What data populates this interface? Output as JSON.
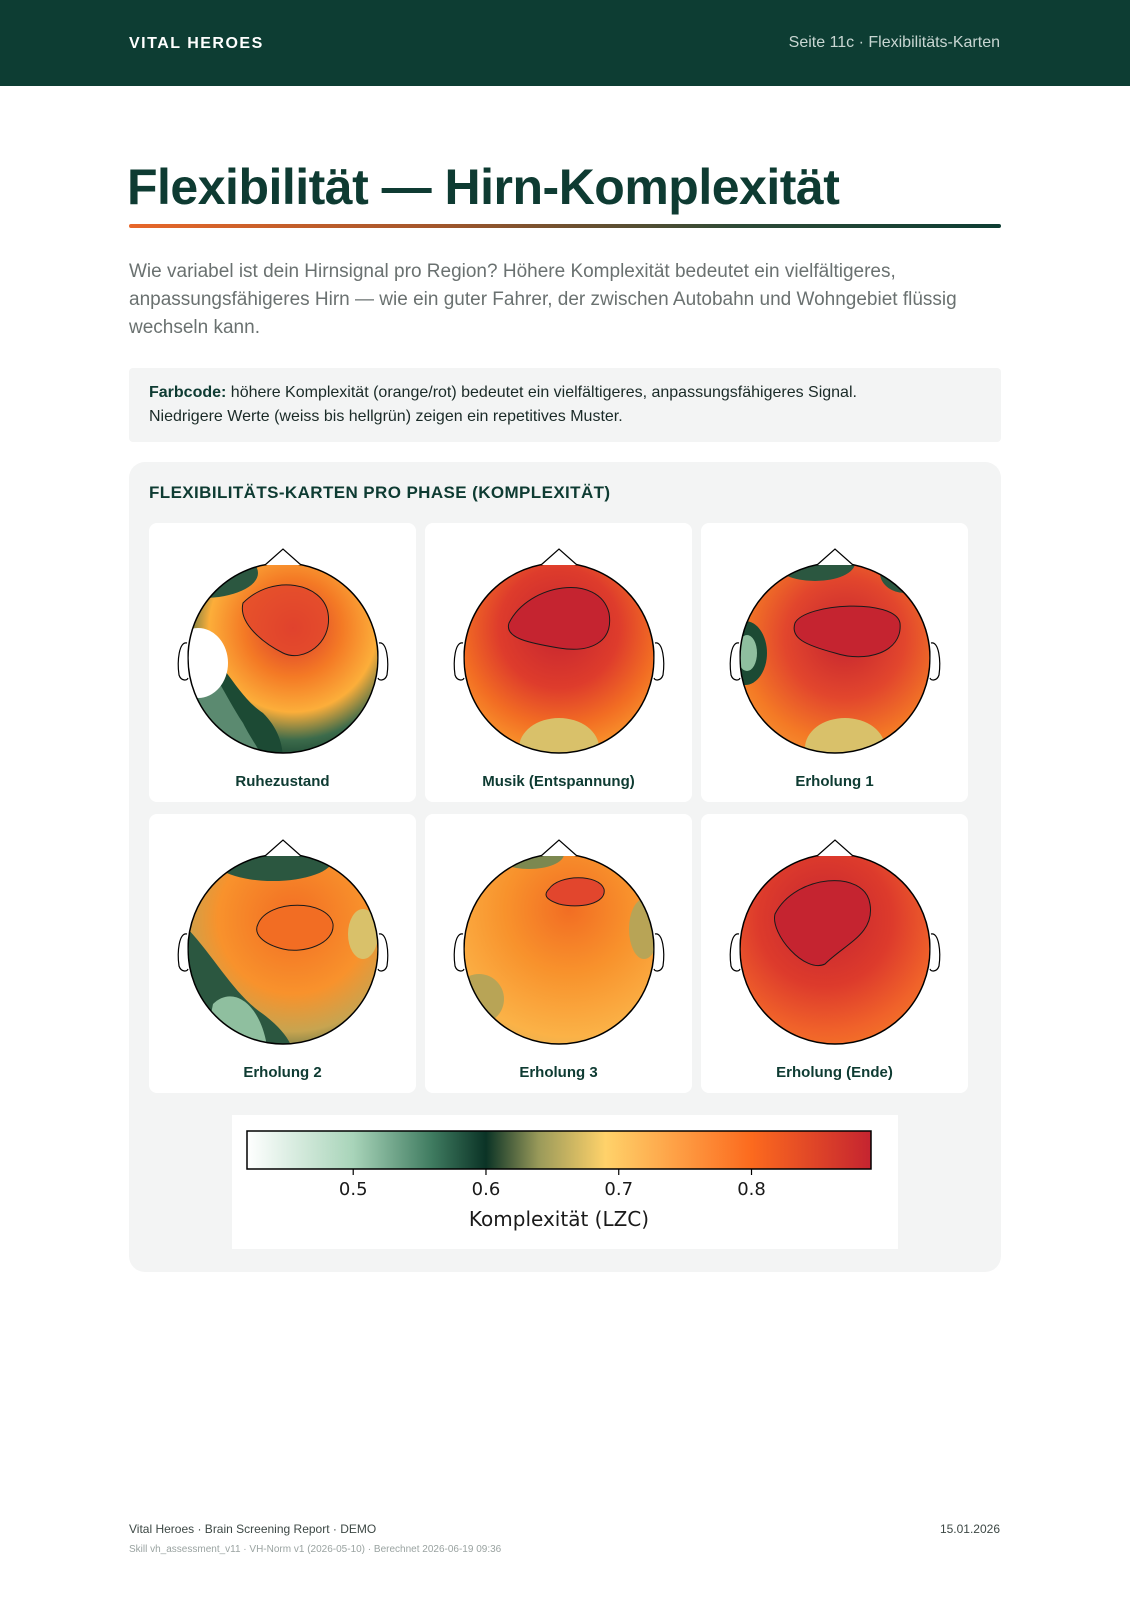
{
  "header": {
    "brand": "VITAL HEROES",
    "page_info": "Seite 11c · Flexibilitäts-Karten"
  },
  "title": "Flexibilität — Hirn-Komplexität",
  "intro": "Wie variabel ist dein Hirnsignal pro Region? Höhere Komplexität bedeutet ein vielfältigeres, anpassungsfähigeres Hirn — wie ein guter Fahrer, der zwischen Autobahn und Wohngebiet flüssig wechseln kann.",
  "callout": {
    "label": "Farbcode:",
    "text_1": " höhere Komplexität (orange/rot) bedeutet ein vielfältigeres, anpassungsfähigeres Signal.",
    "text_2": "Niedrigere Werte (weiss bis hellgrün) zeigen ein repetitives Muster."
  },
  "panel": {
    "title": "FLEXIBILITÄTS-KARTEN PRO PHASE (KOMPLEXITÄT)",
    "maps": [
      {
        "label": "Ruhezustand"
      },
      {
        "label": "Musik (Entspannung)"
      },
      {
        "label": "Erholung 1"
      },
      {
        "label": "Erholung 2"
      },
      {
        "label": "Erholung 3"
      },
      {
        "label": "Erholung (Ende)"
      }
    ]
  },
  "colorbar": {
    "label": "Komplexität (LZC)",
    "min": 0.42,
    "max": 0.89,
    "ticks": [
      "0.5",
      "0.6",
      "0.7",
      "0.8"
    ],
    "stops": [
      {
        "v": 0.42,
        "color": "#ffffff"
      },
      {
        "v": 0.5,
        "color": "#a8d4b9"
      },
      {
        "v": 0.56,
        "color": "#3e7a5f"
      },
      {
        "v": 0.6,
        "color": "#0b3326"
      },
      {
        "v": 0.64,
        "color": "#9a9a5a"
      },
      {
        "v": 0.69,
        "color": "#ffd26a"
      },
      {
        "v": 0.8,
        "color": "#fc6a1e"
      },
      {
        "v": 0.89,
        "color": "#c52430"
      }
    ]
  },
  "footer": {
    "left": "Vital Heroes · Brain Screening Report · DEMO",
    "sub": "Skill vh_assessment_v11 · VH-Norm v1 (2026-05-10) · Berechnet 2026-06-19 09:36",
    "date": "15.01.2026"
  }
}
